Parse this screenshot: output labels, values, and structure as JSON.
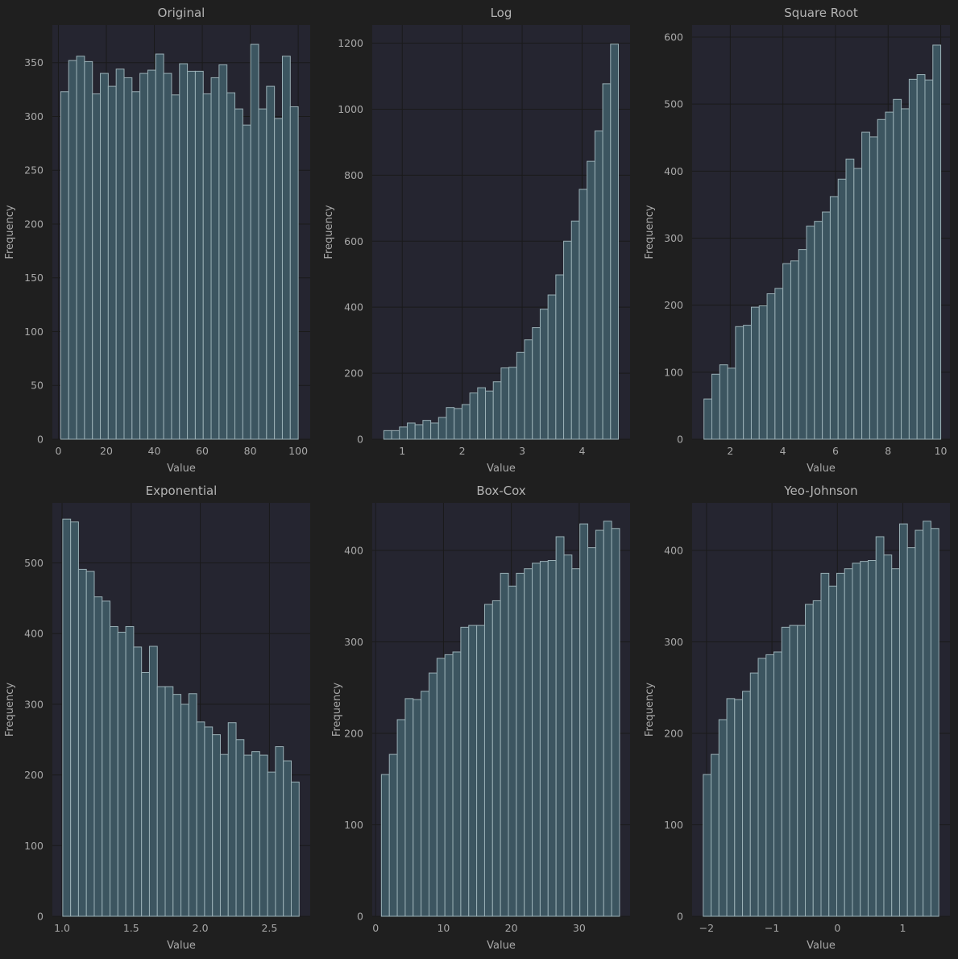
{
  "colors": {
    "figure_bg": "#1f1f1f",
    "axes_bg": "#252530",
    "bar_fill": "#3c5560",
    "bar_edge": "#9ab0b6",
    "grid": "#1a1a1a",
    "text": "#a8a8a8",
    "title": "#b4b4b4"
  },
  "chart_data": [
    {
      "type": "bar",
      "title": "Original",
      "xlabel": "Value",
      "ylabel": "Frequency",
      "xlim": [
        -2.5,
        105.0
      ],
      "ylim": [
        0,
        385
      ],
      "xticks": [
        0,
        20,
        40,
        60,
        80,
        100
      ],
      "yticks": [
        0,
        50,
        100,
        150,
        200,
        250,
        300,
        350
      ],
      "grid": true,
      "bin_start": 1.0,
      "bin_width": 3.3,
      "values": [
        323,
        352,
        356,
        351,
        321,
        340,
        328,
        344,
        336,
        323,
        340,
        343,
        358,
        340,
        320,
        349,
        342,
        342,
        321,
        336,
        348,
        322,
        307,
        292,
        367,
        307,
        328,
        298,
        356,
        309
      ]
    },
    {
      "type": "bar",
      "title": "Log",
      "xlabel": "Value",
      "ylabel": "Frequency",
      "xlim": [
        0.5,
        4.8
      ],
      "ylim": [
        0,
        1255
      ],
      "xticks": [
        1,
        2,
        3,
        4
      ],
      "yticks": [
        0,
        200,
        400,
        600,
        800,
        1000,
        1200
      ],
      "grid": true,
      "bin_start": 0.693,
      "bin_width": 0.1304,
      "values": [
        26,
        26,
        37,
        49,
        44,
        57,
        49,
        66,
        96,
        93,
        105,
        140,
        156,
        146,
        174,
        216,
        218,
        263,
        301,
        338,
        394,
        437,
        498,
        600,
        661,
        757,
        842,
        934,
        1077,
        1197
      ]
    },
    {
      "type": "bar",
      "title": "Square Root",
      "xlabel": "Value",
      "ylabel": "Frequency",
      "xlim": [
        0.55,
        10.35
      ],
      "ylim": [
        0,
        618
      ],
      "xticks": [
        2,
        4,
        6,
        8,
        10
      ],
      "yticks": [
        0,
        100,
        200,
        300,
        400,
        500,
        600
      ],
      "grid": true,
      "bin_start": 1.0,
      "bin_width": 0.3,
      "values": [
        60,
        97,
        111,
        106,
        168,
        170,
        197,
        199,
        217,
        225,
        262,
        266,
        283,
        318,
        325,
        339,
        362,
        388,
        418,
        404,
        458,
        451,
        477,
        488,
        507,
        493,
        537,
        544,
        536,
        588
      ]
    },
    {
      "type": "bar",
      "title": "Exponential",
      "xlabel": "Value",
      "ylabel": "Frequency",
      "xlim": [
        0.93,
        2.795
      ],
      "ylim": [
        0,
        585
      ],
      "xticks": [
        1.0,
        1.5,
        2.0,
        2.5
      ],
      "ytick_labels_override": false,
      "yticks": [
        0,
        100,
        200,
        300,
        400,
        500
      ],
      "grid": true,
      "bin_start": 1.005,
      "bin_width": 0.057,
      "values": [
        562,
        558,
        491,
        488,
        452,
        446,
        410,
        402,
        410,
        381,
        345,
        382,
        325,
        325,
        314,
        300,
        315,
        275,
        268,
        257,
        229,
        274,
        250,
        228,
        233,
        228,
        204,
        240,
        220,
        190
      ]
    },
    {
      "type": "bar",
      "title": "Box-Cox",
      "xlabel": "Value",
      "ylabel": "Frequency",
      "xlim": [
        -0.5,
        37.5
      ],
      "ylim": [
        0,
        452
      ],
      "xticks": [
        0,
        10,
        20,
        30
      ],
      "yticks": [
        0,
        100,
        200,
        300,
        400
      ],
      "grid": true,
      "bin_start": 0.85,
      "bin_width": 1.17,
      "values": [
        155,
        177,
        215,
        238,
        237,
        246,
        266,
        282,
        286,
        289,
        316,
        318,
        318,
        341,
        345,
        375,
        361,
        375,
        380,
        386,
        388,
        389,
        415,
        395,
        380,
        429,
        403,
        422,
        432,
        424
      ]
    },
    {
      "type": "bar",
      "title": "Yeo-Johnson",
      "xlabel": "Value",
      "ylabel": "Frequency",
      "xlim": [
        -2.22,
        1.72
      ],
      "ylim": [
        0,
        452
      ],
      "xticks": [
        -2,
        -1,
        0,
        1
      ],
      "xtick_labels": [
        "−2",
        "−1",
        "0",
        "1"
      ],
      "yticks": [
        0,
        100,
        200,
        300,
        400
      ],
      "grid": true,
      "bin_start": -2.05,
      "bin_width": 0.12,
      "values": [
        155,
        177,
        215,
        238,
        237,
        246,
        266,
        282,
        286,
        289,
        316,
        318,
        318,
        341,
        345,
        375,
        361,
        375,
        380,
        386,
        388,
        389,
        415,
        395,
        380,
        429,
        403,
        422,
        432,
        424
      ]
    }
  ]
}
